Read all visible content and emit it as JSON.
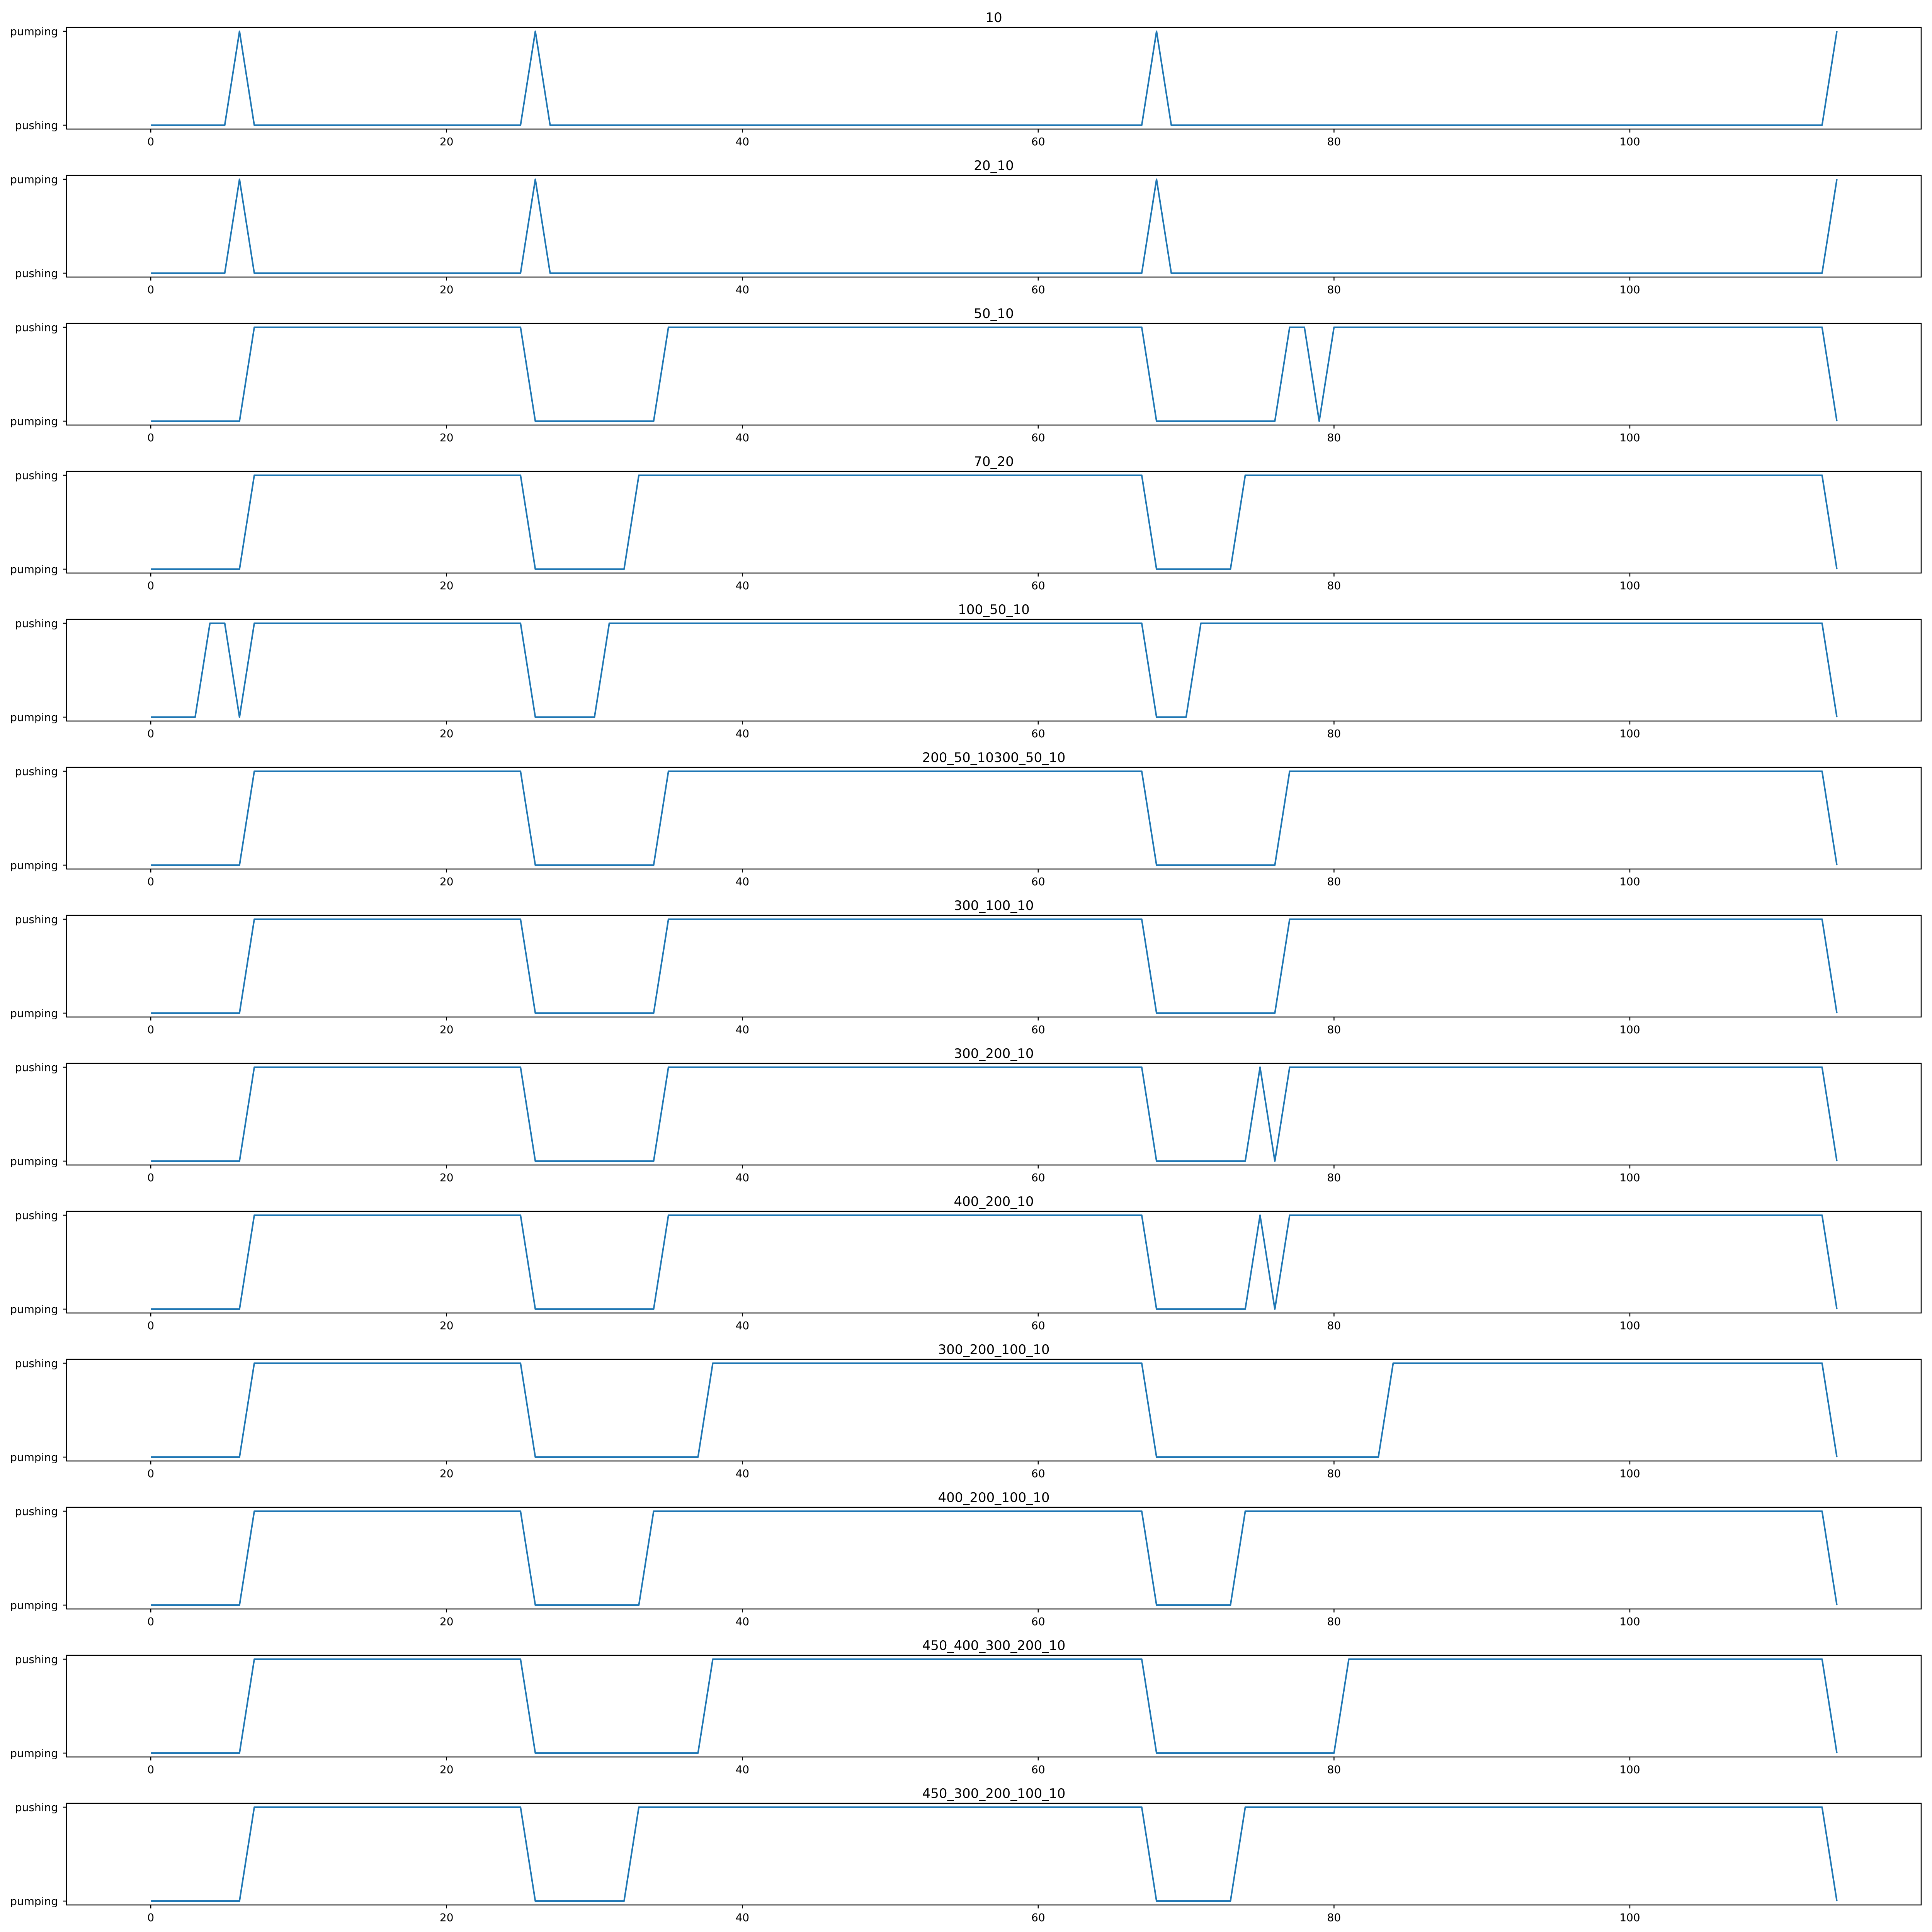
{
  "figure": {
    "line_color": "#1f77b4",
    "background": "#ffffff"
  },
  "chart_data": [
    {
      "type": "line",
      "title": "10",
      "yticklabels": [
        "pushing",
        "pumping"
      ],
      "xticks": [
        0,
        20,
        40,
        60,
        80,
        100
      ],
      "xlim": [
        -5.7,
        119.7
      ],
      "x": [
        0,
        5,
        6,
        7,
        25,
        26,
        27,
        67,
        68,
        69,
        113,
        114
      ],
      "y": [
        0,
        0,
        1,
        0,
        0,
        1,
        0,
        0,
        1,
        0,
        0,
        1
      ]
    },
    {
      "type": "line",
      "title": "20_10",
      "yticklabels": [
        "pushing",
        "pumping"
      ],
      "xticks": [
        0,
        20,
        40,
        60,
        80,
        100
      ],
      "xlim": [
        -5.7,
        119.7
      ],
      "x": [
        0,
        5,
        6,
        7,
        25,
        26,
        27,
        67,
        68,
        69,
        113,
        114
      ],
      "y": [
        0,
        0,
        1,
        0,
        0,
        1,
        0,
        0,
        1,
        0,
        0,
        1
      ]
    },
    {
      "type": "line",
      "title": "50_10",
      "yticklabels": [
        "pumping",
        "pushing"
      ],
      "xticks": [
        0,
        20,
        40,
        60,
        80,
        100
      ],
      "xlim": [
        -5.7,
        119.7
      ],
      "x": [
        0,
        6,
        7,
        25,
        26,
        34,
        35,
        67,
        68,
        76,
        77,
        78,
        79,
        80,
        113,
        114
      ],
      "y": [
        0,
        0,
        1,
        1,
        0,
        0,
        1,
        1,
        0,
        0,
        1,
        1,
        0,
        1,
        1,
        0
      ]
    },
    {
      "type": "line",
      "title": "70_20",
      "yticklabels": [
        "pumping",
        "pushing"
      ],
      "xticks": [
        0,
        20,
        40,
        60,
        80,
        100
      ],
      "xlim": [
        -5.7,
        119.7
      ],
      "x": [
        0,
        6,
        7,
        25,
        26,
        32,
        33,
        67,
        68,
        73,
        74,
        113,
        114
      ],
      "y": [
        0,
        0,
        1,
        1,
        0,
        0,
        1,
        1,
        0,
        0,
        1,
        1,
        0
      ]
    },
    {
      "type": "line",
      "title": "100_50_10",
      "yticklabels": [
        "pumping",
        "pushing"
      ],
      "xticks": [
        0,
        20,
        40,
        60,
        80,
        100
      ],
      "xlim": [
        -5.7,
        119.7
      ],
      "x": [
        0,
        3,
        4,
        5,
        6,
        7,
        25,
        26,
        30,
        31,
        67,
        68,
        70,
        71,
        113,
        114
      ],
      "y": [
        0,
        0,
        1,
        1,
        0,
        1,
        1,
        0,
        0,
        1,
        1,
        0,
        0,
        1,
        1,
        0
      ]
    },
    {
      "type": "line",
      "title": "200_50_10300_50_10",
      "yticklabels": [
        "pumping",
        "pushing"
      ],
      "xticks": [
        0,
        20,
        40,
        60,
        80,
        100
      ],
      "xlim": [
        -5.7,
        119.7
      ],
      "x": [
        0,
        6,
        7,
        25,
        26,
        34,
        35,
        67,
        68,
        76,
        77,
        113,
        114
      ],
      "y": [
        0,
        0,
        1,
        1,
        0,
        0,
        1,
        1,
        0,
        0,
        1,
        1,
        0
      ]
    },
    {
      "type": "line",
      "title": "300_100_10",
      "yticklabels": [
        "pumping",
        "pushing"
      ],
      "xticks": [
        0,
        20,
        40,
        60,
        80,
        100
      ],
      "xlim": [
        -5.7,
        119.7
      ],
      "x": [
        0,
        6,
        7,
        25,
        26,
        34,
        35,
        67,
        68,
        76,
        77,
        113,
        114
      ],
      "y": [
        0,
        0,
        1,
        1,
        0,
        0,
        1,
        1,
        0,
        0,
        1,
        1,
        0
      ]
    },
    {
      "type": "line",
      "title": "300_200_10",
      "yticklabels": [
        "pumping",
        "pushing"
      ],
      "xticks": [
        0,
        20,
        40,
        60,
        80,
        100
      ],
      "xlim": [
        -5.7,
        119.7
      ],
      "x": [
        0,
        6,
        7,
        25,
        26,
        34,
        35,
        67,
        68,
        74,
        75,
        76,
        77,
        113,
        114
      ],
      "y": [
        0,
        0,
        1,
        1,
        0,
        0,
        1,
        1,
        0,
        0,
        1,
        0,
        1,
        1,
        0
      ]
    },
    {
      "type": "line",
      "title": "400_200_10",
      "yticklabels": [
        "pumping",
        "pushing"
      ],
      "xticks": [
        0,
        20,
        40,
        60,
        80,
        100
      ],
      "xlim": [
        -5.7,
        119.7
      ],
      "x": [
        0,
        6,
        7,
        25,
        26,
        34,
        35,
        67,
        68,
        74,
        75,
        76,
        77,
        113,
        114
      ],
      "y": [
        0,
        0,
        1,
        1,
        0,
        0,
        1,
        1,
        0,
        0,
        1,
        0,
        1,
        1,
        0
      ]
    },
    {
      "type": "line",
      "title": "300_200_100_10",
      "yticklabels": [
        "pumping",
        "pushing"
      ],
      "xticks": [
        0,
        20,
        40,
        60,
        80,
        100
      ],
      "xlim": [
        -5.7,
        119.7
      ],
      "x": [
        0,
        6,
        7,
        25,
        26,
        37,
        38,
        67,
        68,
        83,
        84,
        113,
        114
      ],
      "y": [
        0,
        0,
        1,
        1,
        0,
        0,
        1,
        1,
        0,
        0,
        1,
        1,
        0
      ]
    },
    {
      "type": "line",
      "title": "400_200_100_10",
      "yticklabels": [
        "pumping",
        "pushing"
      ],
      "xticks": [
        0,
        20,
        40,
        60,
        80,
        100
      ],
      "xlim": [
        -5.7,
        119.7
      ],
      "x": [
        0,
        6,
        7,
        25,
        26,
        33,
        34,
        67,
        68,
        73,
        74,
        113,
        114
      ],
      "y": [
        0,
        0,
        1,
        1,
        0,
        0,
        1,
        1,
        0,
        0,
        1,
        1,
        0
      ]
    },
    {
      "type": "line",
      "title": "450_400_300_200_10",
      "yticklabels": [
        "pumping",
        "pushing"
      ],
      "xticks": [
        0,
        20,
        40,
        60,
        80,
        100
      ],
      "xlim": [
        -5.7,
        119.7
      ],
      "x": [
        0,
        6,
        7,
        25,
        26,
        37,
        38,
        67,
        68,
        80,
        81,
        113,
        114
      ],
      "y": [
        0,
        0,
        1,
        1,
        0,
        0,
        1,
        1,
        0,
        0,
        1,
        1,
        0
      ]
    },
    {
      "type": "line",
      "title": "450_300_200_100_10",
      "yticklabels": [
        "pumping",
        "pushing"
      ],
      "xticks": [
        0,
        20,
        40,
        60,
        80,
        100
      ],
      "xlim": [
        -5.7,
        119.7
      ],
      "x": [
        0,
        6,
        7,
        25,
        26,
        32,
        33,
        67,
        68,
        73,
        74,
        113,
        114
      ],
      "y": [
        0,
        0,
        1,
        1,
        0,
        0,
        1,
        1,
        0,
        0,
        1,
        1,
        0
      ]
    }
  ]
}
